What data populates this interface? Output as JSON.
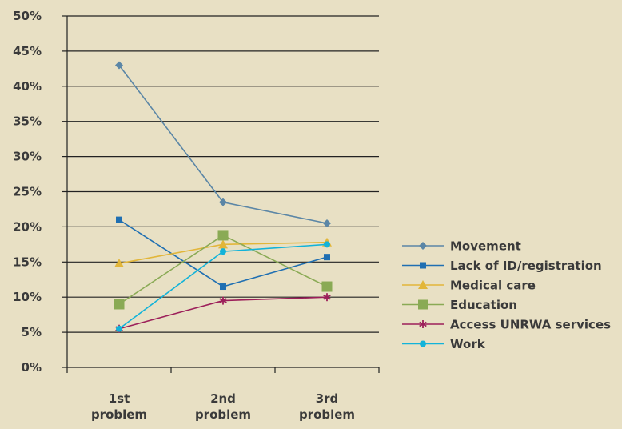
{
  "chart_data": {
    "type": "line",
    "categories": [
      "1st problem",
      "2nd problem",
      "3rd problem"
    ],
    "category_lines": [
      [
        "1st",
        "problem"
      ],
      [
        "2nd",
        "problem"
      ],
      [
        "3rd",
        "problem"
      ]
    ],
    "y_ticks": [
      "0%",
      "5%",
      "10%",
      "15%",
      "20%",
      "25%",
      "30%",
      "35%",
      "40%",
      "45%",
      "50%"
    ],
    "ylim": [
      0,
      50
    ],
    "grid": true,
    "legend_position": "right",
    "series": [
      {
        "name": "Movement",
        "values": [
          43,
          23.5,
          20.5
        ],
        "color": "#5b86a6",
        "marker": "diamond"
      },
      {
        "name": "Lack of ID/registration",
        "values": [
          21,
          11.5,
          15.7
        ],
        "color": "#1f6fb2",
        "marker": "square"
      },
      {
        "name": "Medical care",
        "values": [
          14.8,
          17.5,
          17.8
        ],
        "color": "#e2b63a",
        "marker": "triangle"
      },
      {
        "name": "Education",
        "values": [
          9,
          18.8,
          11.5
        ],
        "color": "#8aaa55",
        "marker": "bigsquare"
      },
      {
        "name": "Access UNRWA services",
        "values": [
          5.5,
          9.5,
          10
        ],
        "color": "#9c1f5a",
        "marker": "star"
      },
      {
        "name": "Work",
        "values": [
          5.5,
          16.5,
          17.5
        ],
        "color": "#12b3d9",
        "marker": "circle"
      }
    ]
  }
}
